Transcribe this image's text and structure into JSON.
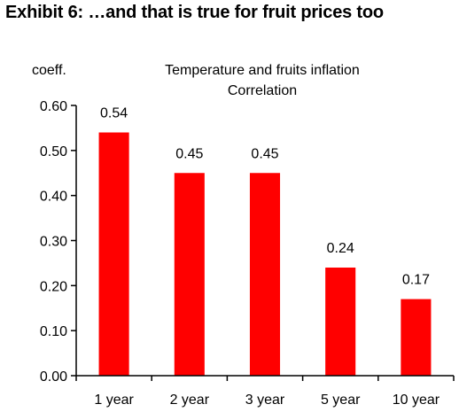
{
  "exhibit_title": "Exhibit 6: …and that is true for fruit prices too",
  "chart_data": {
    "type": "bar",
    "title": "Temperature and fruits inflation",
    "subtitle": "Correlation",
    "ylabel": "coeff.",
    "xlabel": "",
    "categories": [
      "1 year",
      "2 year",
      "3 year",
      "5 year",
      "10 year"
    ],
    "values": [
      0.54,
      0.45,
      0.45,
      0.24,
      0.17
    ],
    "value_labels": [
      "0.54",
      "0.45",
      "0.45",
      "0.24",
      "0.17"
    ],
    "ylim": [
      0,
      0.6
    ],
    "yticks": [
      "0.00",
      "0.10",
      "0.20",
      "0.30",
      "0.40",
      "0.50",
      "0.60"
    ],
    "grid": false,
    "bar_color": "#ff0000"
  }
}
